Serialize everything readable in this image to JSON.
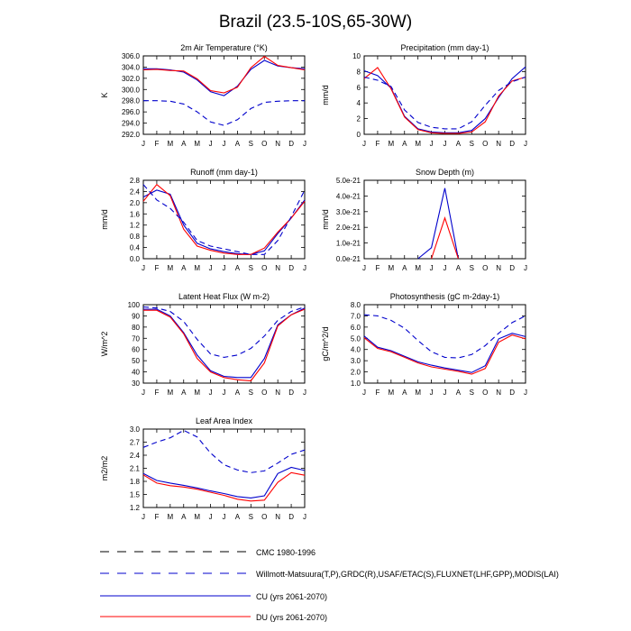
{
  "figure": {
    "title": "Brazil (23.5-10S,65-30W)",
    "month_labels": [
      "J",
      "F",
      "M",
      "A",
      "M",
      "J",
      "J",
      "A",
      "S",
      "O",
      "N",
      "D",
      "J"
    ]
  },
  "legend": [
    {
      "label": "CMC 1980-1996",
      "style": "dashed-black"
    },
    {
      "label": "Willmott-Matsuura(T,P),GRDC(R),USAF/ETAC(S),FLUXNET(LHF,GPP),MODIS(LAI)",
      "style": "dashed-blue"
    },
    {
      "label": "CU (yrs 2061-2070)",
      "style": "solid-blue"
    },
    {
      "label": "DU (yrs 2061-2070)",
      "style": "solid-red"
    }
  ],
  "colors": {
    "cu": "#0000cc",
    "du": "#ff0000",
    "obs": "#0000cc",
    "cmc": "#000000"
  },
  "chart_data": [
    {
      "type": "line",
      "title": "2m Air Temperature (°K)",
      "ylabel": "K",
      "ylim": [
        292,
        306
      ],
      "yticks": [
        "292.0",
        "294.0",
        "296.0",
        "298.0",
        "300.0",
        "302.0",
        "304.0",
        "306.0"
      ],
      "ytick_values": [
        292,
        294,
        296,
        298,
        300,
        302,
        304,
        306
      ],
      "x": [
        "J",
        "F",
        "M",
        "A",
        "M",
        "J",
        "J",
        "A",
        "S",
        "O",
        "N",
        "D",
        "J"
      ],
      "series": [
        {
          "name": "CU (yrs 2061-2070)",
          "style": "solid-blue",
          "values": [
            303.7,
            303.7,
            303.5,
            303.1,
            301.7,
            299.6,
            298.9,
            300.6,
            303.6,
            305.2,
            304.2,
            303.9,
            303.7
          ]
        },
        {
          "name": "DU (yrs 2061-2070)",
          "style": "solid-red",
          "values": [
            303.5,
            303.6,
            303.4,
            303.3,
            301.9,
            299.8,
            299.4,
            300.4,
            303.9,
            305.9,
            304.3,
            303.9,
            303.5
          ]
        },
        {
          "name": "Willmott-Matsuura(T,P),GRDC(R),USAF/ETAC(S),FLUXNET(LHF,GPP),MODIS(LAI)",
          "style": "dashed-blue",
          "values": [
            298.0,
            298.0,
            297.9,
            297.4,
            296.0,
            294.2,
            293.6,
            294.6,
            296.6,
            297.7,
            297.9,
            298.0,
            298.0
          ]
        }
      ]
    },
    {
      "type": "line",
      "title": "Precipitation (mm day-1)",
      "ylabel": "mm/d",
      "ylim": [
        0,
        10
      ],
      "yticks": [
        "0",
        "2",
        "4",
        "6",
        "8",
        "10"
      ],
      "ytick_values": [
        0,
        2,
        4,
        6,
        8,
        10
      ],
      "x": [
        "J",
        "F",
        "M",
        "A",
        "M",
        "J",
        "J",
        "A",
        "S",
        "O",
        "N",
        "D",
        "J"
      ],
      "series": [
        {
          "name": "CU (yrs 2061-2070)",
          "style": "solid-blue",
          "values": [
            8.1,
            7.5,
            5.9,
            2.3,
            0.7,
            0.3,
            0.2,
            0.2,
            0.5,
            2.0,
            4.7,
            7.1,
            8.6
          ]
        },
        {
          "name": "DU (yrs 2061-2070)",
          "style": "solid-red",
          "values": [
            7.1,
            8.5,
            5.8,
            2.2,
            0.6,
            0.2,
            0.1,
            0.1,
            0.3,
            1.6,
            4.9,
            6.8,
            7.3
          ]
        },
        {
          "name": "Willmott-Matsuura(T,P),GRDC(R),USAF/ETAC(S),FLUXNET(LHF,GPP),MODIS(LAI)",
          "style": "dashed-blue",
          "values": [
            7.3,
            6.9,
            6.1,
            3.1,
            1.5,
            0.9,
            0.7,
            0.7,
            1.6,
            3.7,
            5.6,
            6.7,
            7.3
          ]
        }
      ]
    },
    {
      "type": "line",
      "title": "Runoff (mm day-1)",
      "ylabel": "mm/d",
      "ylim": [
        0,
        2.8
      ],
      "yticks": [
        "0.0",
        "0.4",
        "0.8",
        "1.2",
        "1.6",
        "2.0",
        "2.4",
        "2.8"
      ],
      "ytick_values": [
        0,
        0.4,
        0.8,
        1.2,
        1.6,
        2.0,
        2.4,
        2.8
      ],
      "x": [
        "J",
        "F",
        "M",
        "A",
        "M",
        "J",
        "J",
        "A",
        "S",
        "O",
        "N",
        "D",
        "J"
      ],
      "series": [
        {
          "name": "CU (yrs 2061-2070)",
          "style": "solid-blue",
          "values": [
            2.2,
            2.45,
            2.3,
            1.2,
            0.55,
            0.35,
            0.25,
            0.18,
            0.15,
            0.28,
            0.9,
            1.45,
            2.1
          ]
        },
        {
          "name": "DU (yrs 2061-2070)",
          "style": "solid-red",
          "values": [
            2.05,
            2.65,
            2.25,
            1.05,
            0.45,
            0.3,
            0.2,
            0.15,
            0.15,
            0.38,
            0.95,
            1.45,
            2.05
          ]
        },
        {
          "name": "Willmott-Matsuura(T,P),GRDC(R),USAF/ETAC(S),FLUXNET(LHF,GPP),MODIS(LAI)",
          "style": "dashed-blue",
          "values": [
            2.65,
            2.1,
            1.8,
            1.3,
            0.65,
            0.45,
            0.35,
            0.25,
            0.15,
            0.15,
            0.65,
            1.5,
            2.45
          ]
        }
      ]
    },
    {
      "type": "line",
      "title": "Snow Depth (m)",
      "ylabel": "mm/d",
      "ylim": [
        0,
        5e-21
      ],
      "yticks": [
        "0.0e-21",
        "1.0e-21",
        "2.0e-21",
        "3.0e-21",
        "4.0e-21",
        "5.0e-21"
      ],
      "ytick_values": [
        0,
        1e-21,
        2e-21,
        3e-21,
        4e-21,
        5e-21
      ],
      "x": [
        "J",
        "F",
        "M",
        "A",
        "M",
        "J",
        "J",
        "A",
        "S",
        "O",
        "N",
        "D",
        "J"
      ],
      "series": [
        {
          "name": "CU (yrs 2061-2070)",
          "style": "solid-blue",
          "values": [
            null,
            null,
            null,
            null,
            0,
            7e-22,
            4.5e-21,
            0,
            null,
            null,
            null,
            null,
            null
          ]
        },
        {
          "name": "DU (yrs 2061-2070)",
          "style": "solid-red",
          "values": [
            null,
            null,
            null,
            null,
            null,
            0,
            2.6e-21,
            0,
            null,
            null,
            null,
            null,
            null
          ]
        }
      ]
    },
    {
      "type": "line",
      "title": "Latent Heat Flux (W m-2)",
      "ylabel": "W/m^2",
      "ylim": [
        30,
        100
      ],
      "yticks": [
        "30",
        "40",
        "50",
        "60",
        "70",
        "80",
        "90",
        "100"
      ],
      "ytick_values": [
        30,
        40,
        50,
        60,
        70,
        80,
        90,
        100
      ],
      "x": [
        "J",
        "F",
        "M",
        "A",
        "M",
        "J",
        "J",
        "A",
        "S",
        "O",
        "N",
        "D",
        "J"
      ],
      "series": [
        {
          "name": "CU (yrs 2061-2070)",
          "style": "solid-blue",
          "values": [
            96,
            96,
            90,
            75,
            55,
            41,
            36,
            35,
            35,
            52,
            82,
            91,
            97
          ]
        },
        {
          "name": "DU (yrs 2061-2070)",
          "style": "solid-red",
          "values": [
            95,
            95,
            89,
            74,
            52,
            40,
            35,
            33,
            32,
            48,
            81,
            91,
            96
          ]
        },
        {
          "name": "Willmott-Matsuura(T,P),GRDC(R),USAF/ETAC(S),FLUXNET(LHF,GPP),MODIS(LAI)",
          "style": "dashed-blue",
          "values": [
            98,
            97,
            94,
            85,
            69,
            56,
            53,
            55,
            61,
            72,
            86,
            94,
            98
          ]
        }
      ]
    },
    {
      "type": "line",
      "title": "Photosynthesis (gC m-2day-1)",
      "ylabel": "gC/m^2/d",
      "ylim": [
        1,
        8
      ],
      "yticks": [
        "1.0",
        "2.0",
        "3.0",
        "4.0",
        "5.0",
        "6.0",
        "7.0",
        "8.0"
      ],
      "ytick_values": [
        1,
        2,
        3,
        4,
        5,
        6,
        7,
        8
      ],
      "x": [
        "J",
        "F",
        "M",
        "A",
        "M",
        "J",
        "J",
        "A",
        "S",
        "O",
        "N",
        "D",
        "J"
      ],
      "series": [
        {
          "name": "CU (yrs 2061-2070)",
          "style": "solid-blue",
          "values": [
            5.2,
            4.2,
            3.9,
            3.4,
            2.9,
            2.6,
            2.35,
            2.15,
            1.95,
            2.55,
            4.95,
            5.45,
            5.15
          ]
        },
        {
          "name": "DU (yrs 2061-2070)",
          "style": "solid-red",
          "values": [
            5.05,
            4.1,
            3.8,
            3.3,
            2.8,
            2.45,
            2.25,
            2.05,
            1.8,
            2.3,
            4.65,
            5.3,
            4.95
          ]
        },
        {
          "name": "Willmott-Matsuura(T,P),GRDC(R),USAF/ETAC(S),FLUXNET(LHF,GPP),MODIS(LAI)",
          "style": "dashed-blue",
          "values": [
            7.1,
            7.0,
            6.6,
            5.9,
            4.8,
            3.8,
            3.3,
            3.25,
            3.55,
            4.35,
            5.45,
            6.4,
            7.0
          ]
        }
      ]
    },
    {
      "type": "line",
      "title": "Leaf Area Index",
      "ylabel": "m2/m2",
      "ylim": [
        1.2,
        3.0
      ],
      "yticks": [
        "1.2",
        "1.5",
        "1.8",
        "2.1",
        "2.4",
        "2.7",
        "3.0"
      ],
      "ytick_values": [
        1.2,
        1.5,
        1.8,
        2.1,
        2.4,
        2.7,
        3.0
      ],
      "x": [
        "J",
        "F",
        "M",
        "A",
        "M",
        "J",
        "J",
        "A",
        "S",
        "O",
        "N",
        "D",
        "J"
      ],
      "series": [
        {
          "name": "CU (yrs 2061-2070)",
          "style": "solid-blue",
          "values": [
            1.98,
            1.82,
            1.76,
            1.71,
            1.65,
            1.58,
            1.52,
            1.45,
            1.42,
            1.47,
            1.98,
            2.12,
            2.05
          ]
        },
        {
          "name": "DU (yrs 2061-2070)",
          "style": "solid-red",
          "values": [
            1.95,
            1.76,
            1.7,
            1.67,
            1.62,
            1.55,
            1.48,
            1.39,
            1.35,
            1.37,
            1.78,
            2.0,
            1.94
          ]
        },
        {
          "name": "Willmott-Matsuura(T,P),GRDC(R),USAF/ETAC(S),FLUXNET(LHF,GPP),MODIS(LAI)",
          "style": "dashed-blue",
          "values": [
            2.58,
            2.7,
            2.8,
            2.97,
            2.82,
            2.45,
            2.18,
            2.06,
            2.0,
            2.04,
            2.22,
            2.42,
            2.52
          ]
        }
      ]
    }
  ]
}
